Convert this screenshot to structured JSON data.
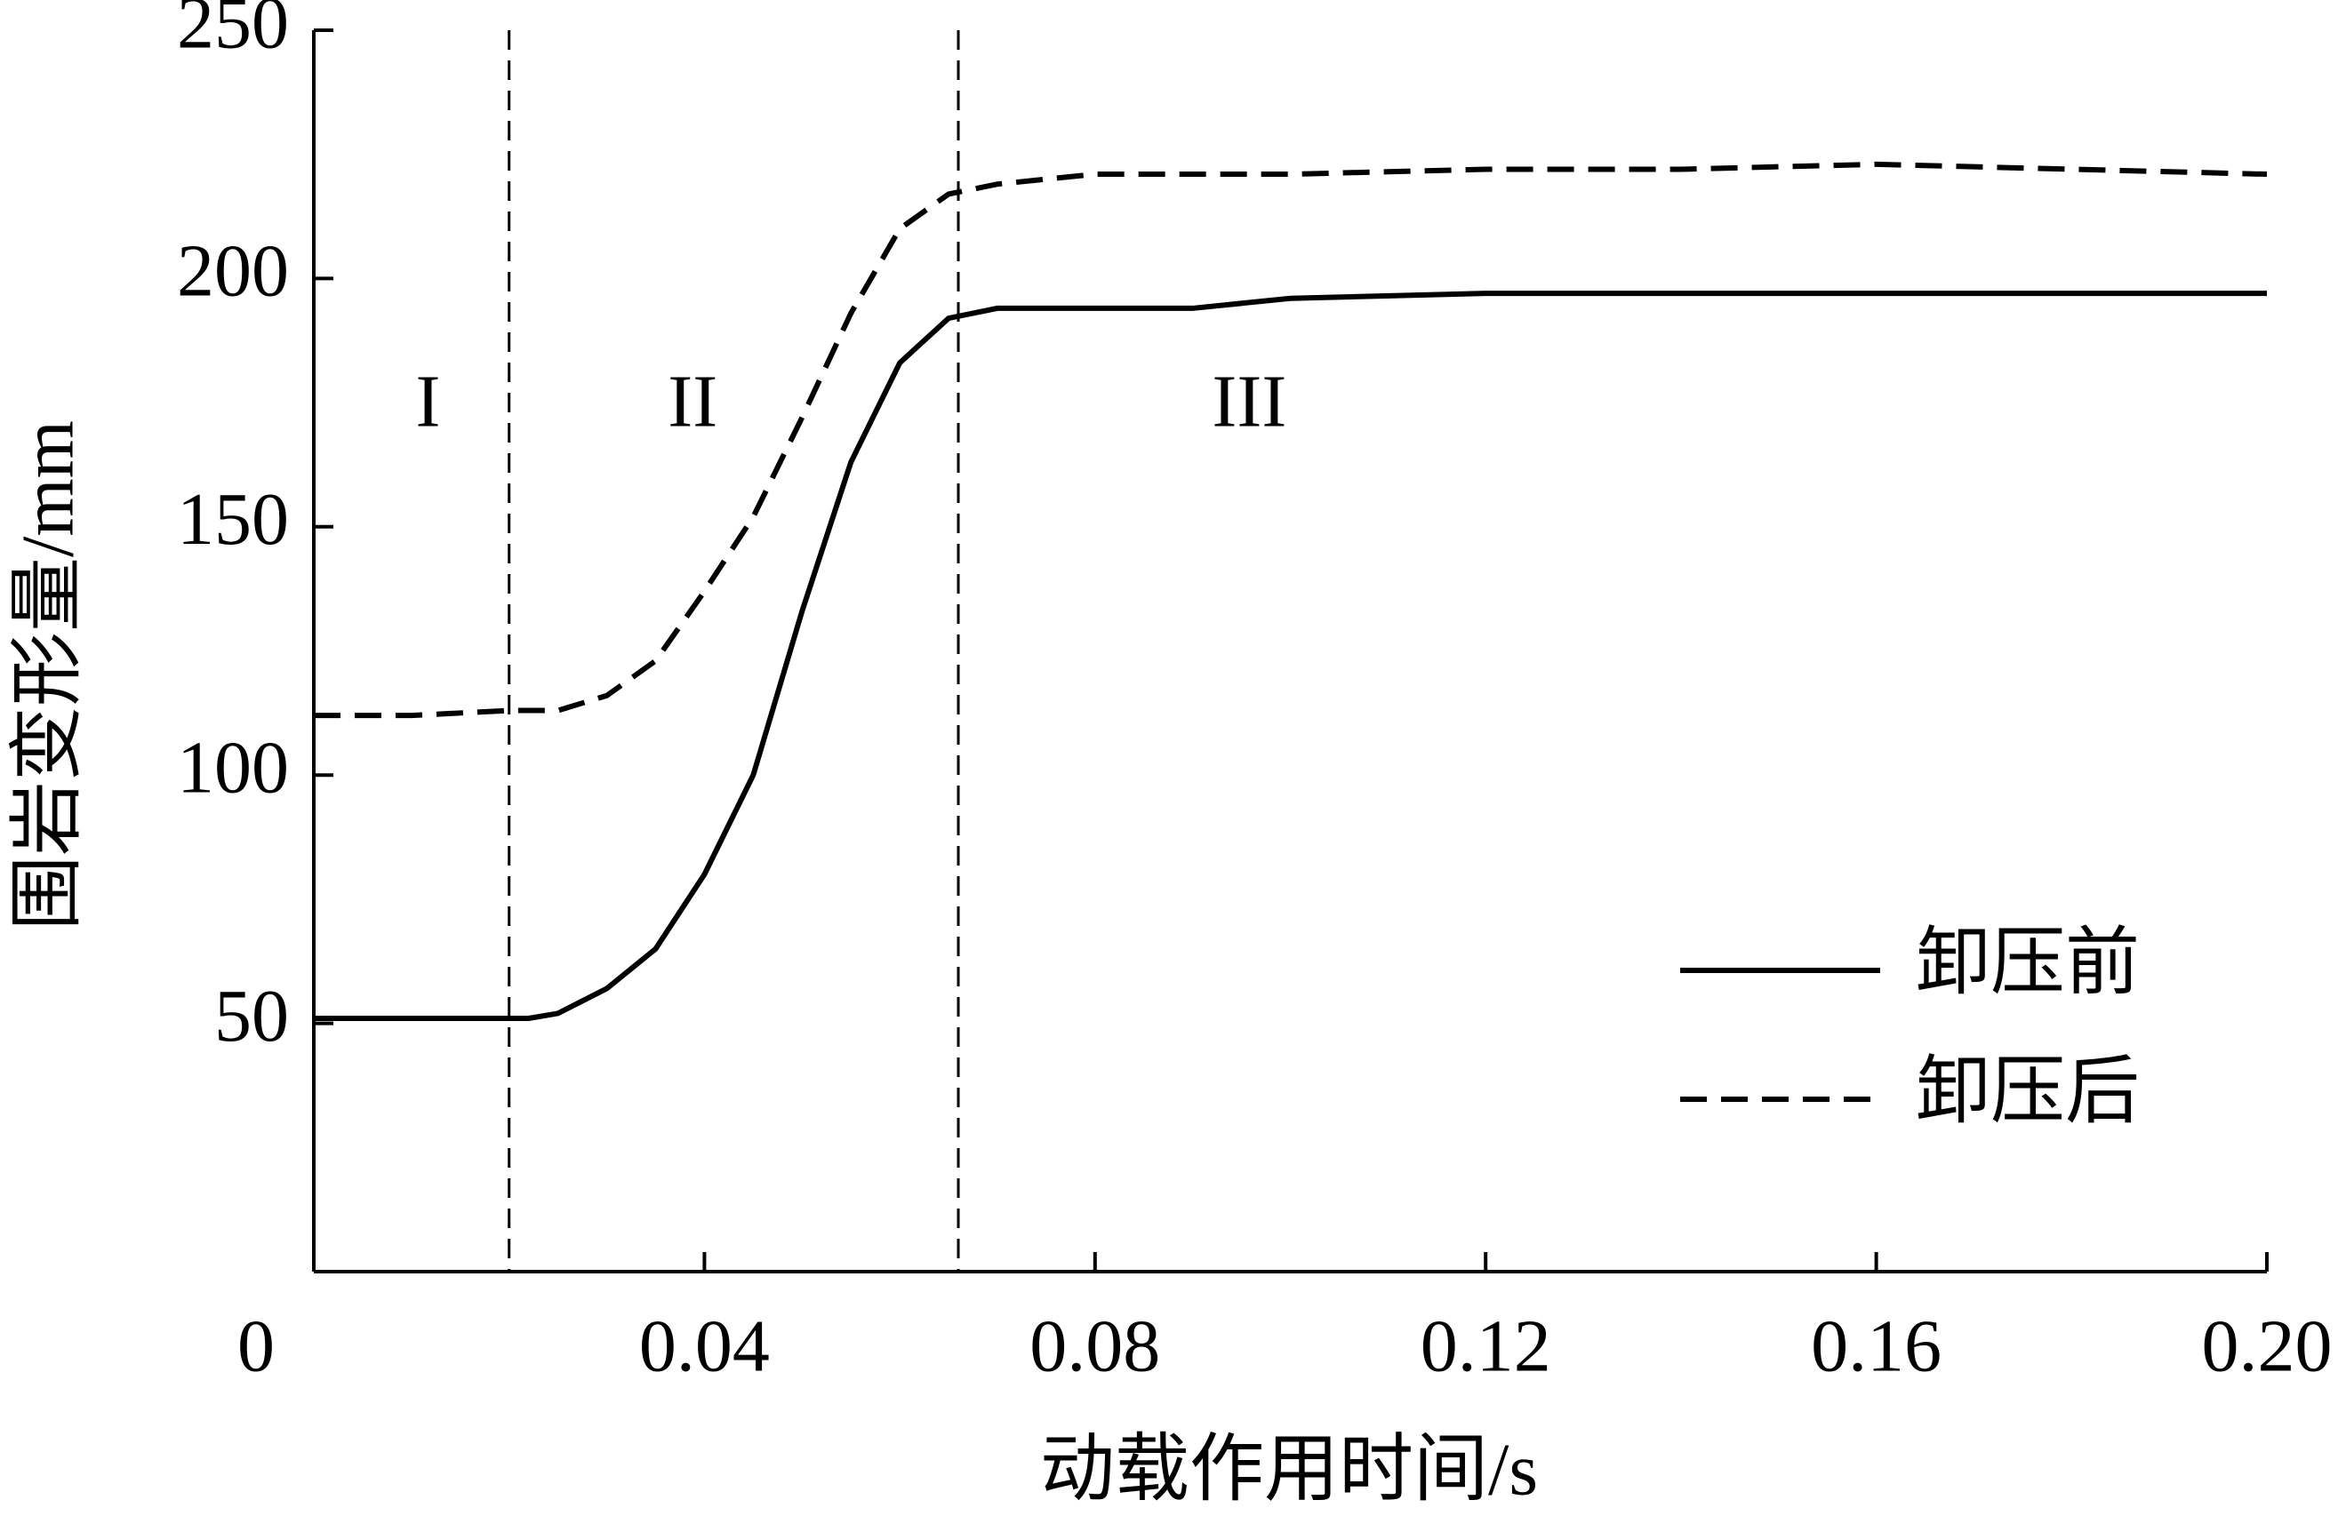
{
  "chart_data": {
    "type": "line",
    "xlabel": "动载作用时间/s",
    "ylabel": "围岩变形量/mm",
    "x": [
      0,
      0.01,
      0.02,
      0.022,
      0.025,
      0.03,
      0.035,
      0.04,
      0.045,
      0.05,
      0.055,
      0.06,
      0.065,
      0.07,
      0.08,
      0.09,
      0.1,
      0.12,
      0.14,
      0.16,
      0.18,
      0.2
    ],
    "series": [
      {
        "name": "卸压前",
        "color": "#000000",
        "dash": "solid",
        "values": [
          51,
          51,
          51,
          51,
          52,
          57,
          65,
          80,
          100,
          133,
          163,
          183,
          192,
          194,
          194,
          194,
          196,
          197,
          197,
          197,
          197,
          197
        ]
      },
      {
        "name": "卸压后",
        "color": "#000000",
        "dash": "dashed",
        "values": [
          112,
          112,
          113,
          113,
          113,
          116,
          123,
          137,
          152,
          172,
          193,
          210,
          217,
          219,
          221,
          221,
          221,
          222,
          222,
          223,
          222,
          221
        ]
      }
    ],
    "xlim": [
      0,
      0.2
    ],
    "ylim": [
      0,
      250
    ],
    "xticks": [
      0,
      0.04,
      0.08,
      0.12,
      0.16,
      {
        "value": 0.2,
        "label": "0.20"
      }
    ],
    "yticks": [
      50,
      100,
      150,
      200,
      250
    ],
    "phase_boundaries": [
      0.02,
      0.066
    ],
    "phases": [
      "I",
      "II",
      "III"
    ],
    "legend": "lower right",
    "grid": false
  }
}
